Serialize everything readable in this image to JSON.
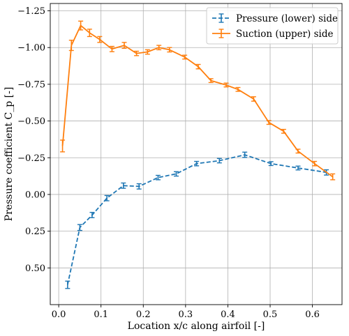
{
  "chart_data": {
    "type": "line",
    "xlabel": "Location x/c along airfoil [-]",
    "ylabel": "Pressure coefficient C_p [-]",
    "xlim": [
      -0.02,
      0.67
    ],
    "ylim": [
      0.75,
      -1.3
    ],
    "y_inverted": true,
    "grid": true,
    "legend_position": "top-right",
    "x_ticks": [
      0.0,
      0.1,
      0.2,
      0.3,
      0.4,
      0.5,
      0.6
    ],
    "x_tick_labels": [
      "0.0",
      "0.1",
      "0.2",
      "0.3",
      "0.4",
      "0.5",
      "0.6"
    ],
    "y_ticks": [
      -1.25,
      -1.0,
      -0.75,
      -0.5,
      -0.25,
      0.0,
      0.25,
      0.5
    ],
    "y_tick_labels": [
      "−1.25",
      "−1.00",
      "−0.75",
      "−0.50",
      "−0.25",
      "0.00",
      "0.25",
      "0.50"
    ],
    "series": [
      {
        "name": "Pressure (lower) side",
        "color": "#1f77b4",
        "line_style": "dashed",
        "x": [
          0.021,
          0.05,
          0.079,
          0.114,
          0.153,
          0.19,
          0.235,
          0.278,
          0.326,
          0.38,
          0.44,
          0.502,
          0.566,
          0.633
        ],
        "y": [
          0.615,
          0.225,
          0.14,
          0.025,
          -0.06,
          -0.055,
          -0.115,
          -0.14,
          -0.21,
          -0.23,
          -0.27,
          -0.21,
          -0.18,
          -0.15
        ],
        "err": [
          0.025,
          0.02,
          0.018,
          0.018,
          0.018,
          0.018,
          0.015,
          0.015,
          0.015,
          0.015,
          0.018,
          0.013,
          0.013,
          0.018
        ]
      },
      {
        "name": "Suction (upper) side",
        "color": "#ff7f0e",
        "line_style": "solid",
        "x": [
          0.009,
          0.03,
          0.052,
          0.073,
          0.097,
          0.126,
          0.155,
          0.184,
          0.21,
          0.237,
          0.262,
          0.298,
          0.33,
          0.36,
          0.396,
          0.424,
          0.461,
          0.497,
          0.532,
          0.566,
          0.605,
          0.648
        ],
        "y": [
          -0.33,
          -1.015,
          -1.15,
          -1.1,
          -1.055,
          -0.99,
          -1.015,
          -0.96,
          -0.97,
          -1.0,
          -0.985,
          -0.935,
          -0.87,
          -0.775,
          -0.745,
          -0.715,
          -0.65,
          -0.49,
          -0.43,
          -0.295,
          -0.21,
          -0.12
        ],
        "err": [
          0.04,
          0.035,
          0.03,
          0.025,
          0.02,
          0.018,
          0.02,
          0.015,
          0.015,
          0.015,
          0.015,
          0.013,
          0.015,
          0.013,
          0.013,
          0.013,
          0.015,
          0.013,
          0.013,
          0.013,
          0.015,
          0.02
        ]
      }
    ]
  }
}
